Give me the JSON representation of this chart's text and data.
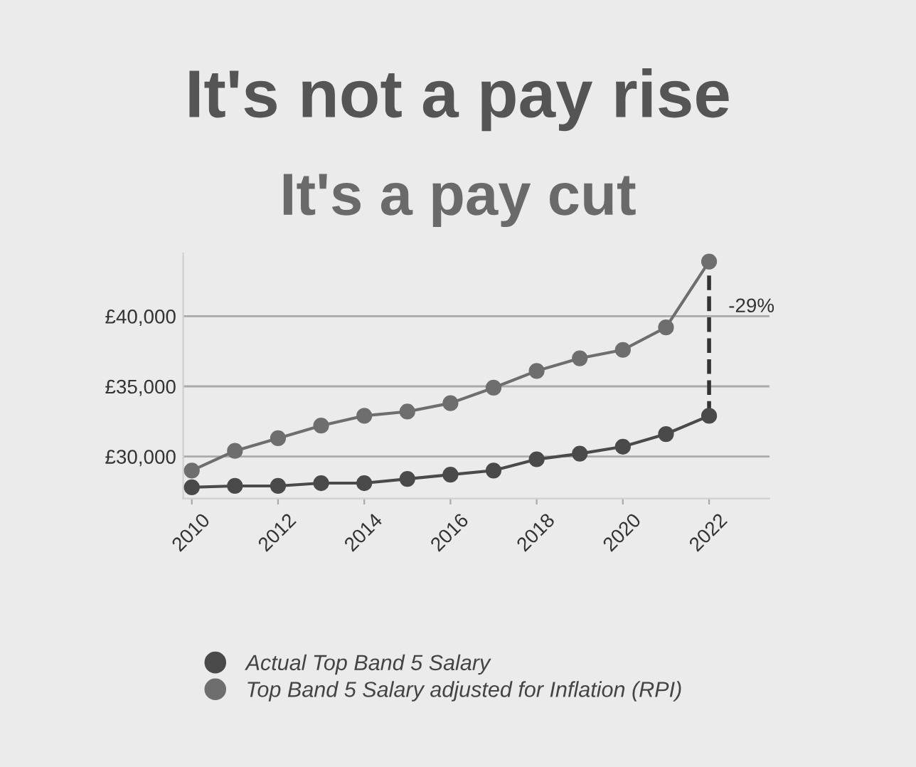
{
  "chart_data": {
    "type": "line",
    "title": "It's not a pay rise",
    "subtitle": "It's a pay cut",
    "x": [
      2010,
      2011,
      2012,
      2013,
      2014,
      2015,
      2016,
      2017,
      2018,
      2019,
      2020,
      2021,
      2022
    ],
    "series": [
      {
        "name": "Actual Top Band 5 Salary",
        "color": "#4a4a4a",
        "values": [
          27800,
          27900,
          27900,
          28100,
          28100,
          28400,
          28700,
          29000,
          29800,
          30200,
          30700,
          31600,
          32900
        ]
      },
      {
        "name": "Top Band 5 Salary adjusted for Inflation (RPI)",
        "color": "#6e6e6e",
        "values": [
          29000,
          30400,
          31300,
          32200,
          32900,
          33200,
          33800,
          34900,
          36100,
          37000,
          37600,
          39200,
          43900
        ]
      },
      {
        "x": [
          2022,
          2022
        ],
        "color": "#333333",
        "values": [
          32900,
          43900
        ],
        "line_style": "dashed",
        "marker": "none"
      }
    ],
    "annotations": [
      "-29%"
    ],
    "xlim": [
      2009.8,
      2023.4
    ],
    "xticks": [
      2010,
      2012,
      2014,
      2016,
      2018,
      2020,
      2022
    ],
    "ylim": [
      27000,
      44500
    ],
    "yticks": [
      {
        "value": 30000,
        "label": "£30,000"
      },
      {
        "value": 35000,
        "label": "£35,000"
      },
      {
        "value": 40000,
        "label": "£40,000"
      }
    ],
    "grid": "y",
    "legend": "bottom left",
    "marker": "circle",
    "line_style": "solid"
  }
}
